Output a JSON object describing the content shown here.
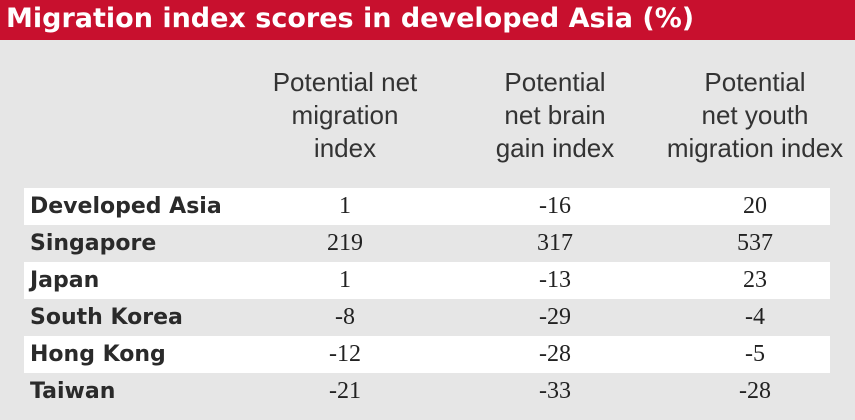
{
  "title": "Migration index scores in developed Asia (%)",
  "colors": {
    "title_bg": "#c8102e",
    "background": "#e6e6e6",
    "stripe": "#ffffff"
  },
  "chart_data": {
    "type": "table",
    "title": "Migration index scores in developed Asia (%)",
    "columns": [
      [
        "Potential net",
        "migration",
        "index"
      ],
      [
        "Potential",
        "net brain",
        "gain index"
      ],
      [
        "Potential",
        "net youth",
        "migration index"
      ]
    ],
    "rows": [
      {
        "label": "Developed Asia",
        "values": [
          "1",
          "-16",
          "20"
        ]
      },
      {
        "label": "Singapore",
        "values": [
          "219",
          "317",
          "537"
        ]
      },
      {
        "label": "Japan",
        "values": [
          "1",
          "-13",
          "23"
        ]
      },
      {
        "label": "South Korea",
        "values": [
          "-8",
          "-29",
          "-4"
        ]
      },
      {
        "label": "Hong Kong",
        "values": [
          "-12",
          "-28",
          "-5"
        ]
      },
      {
        "label": "Taiwan",
        "values": [
          "-21",
          "-33",
          "-28"
        ]
      }
    ]
  }
}
